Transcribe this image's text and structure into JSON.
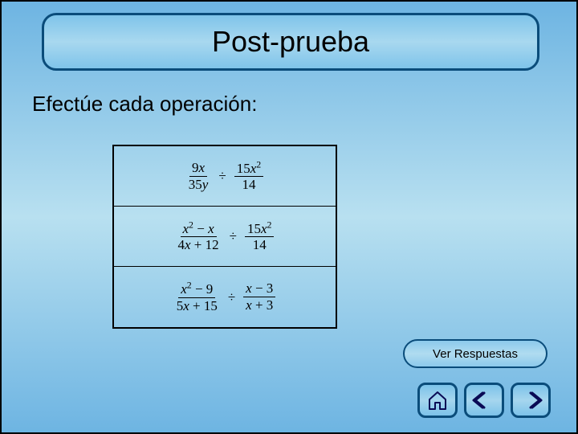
{
  "title": "Post-prueba",
  "instruction": "Efectúe cada operación:",
  "rows": [
    {
      "f1n": "9x",
      "f1d": "35y",
      "f2n": "15x²",
      "f2d": "14"
    },
    {
      "f1n": "x² − x",
      "f1d": "4x + 12",
      "f2n": "15x²",
      "f2d": "14"
    },
    {
      "f1n": "x² − 9",
      "f1d": "5x + 15",
      "f2n": "x − 3",
      "f2d": "x + 3"
    }
  ],
  "answers_label": "Ver Respuestas",
  "colors": {
    "border": "#0a4c7a",
    "icon_stroke": "#0a0a55"
  }
}
